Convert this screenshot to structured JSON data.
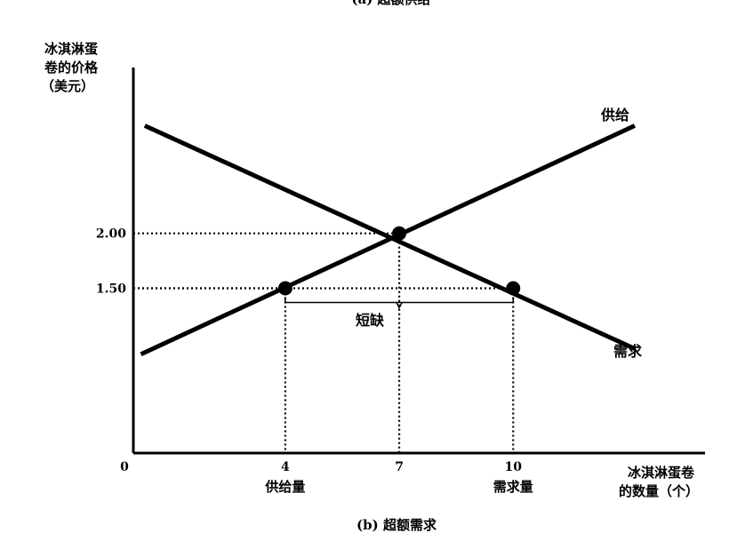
{
  "header": {
    "top_caption": "(a) 超额供给"
  },
  "footer": {
    "bottom_caption": "(b) 超额需求"
  },
  "chart_data": {
    "type": "line",
    "ylabel_lines": [
      "冰淇淋蛋",
      "卷的价格",
      "（美元）"
    ],
    "xlabel_lines": [
      "冰淇淋蛋卷",
      "的数量（个）"
    ],
    "origin_label": "0",
    "xlim": [
      0,
      15.05
    ],
    "ylim": [
      0,
      3.51
    ],
    "series": [
      {
        "name": "供给",
        "x": [
          0.2,
          13.2
        ],
        "y": [
          0.9,
          2.98
        ]
      },
      {
        "name": "需求",
        "x": [
          0.3,
          13.2
        ],
        "y": [
          2.98,
          0.95
        ]
      }
    ],
    "points": [
      {
        "x": 4,
        "y": 1.5
      },
      {
        "x": 7,
        "y": 2.0
      },
      {
        "x": 10,
        "y": 1.5
      }
    ],
    "guides": [
      {
        "x": 4,
        "y": 1.5
      },
      {
        "x": 7,
        "y": 2.0
      },
      {
        "x": 10,
        "y": 1.5
      }
    ],
    "y_ticks": [
      {
        "value": 2.0,
        "label": "2.00"
      },
      {
        "value": 1.5,
        "label": "1.50"
      }
    ],
    "x_ticks": [
      {
        "value": 4,
        "label": "4",
        "sublabel": "供给量"
      },
      {
        "value": 7,
        "label": "7",
        "sublabel": ""
      },
      {
        "value": 10,
        "label": "10",
        "sublabel": "需求量"
      }
    ],
    "shortage": {
      "label": "短缺",
      "x_from": 4,
      "x_to": 10,
      "y": 1.5
    },
    "colors": {
      "line": "#000000",
      "background": "#ffffff"
    },
    "grid": false,
    "legend": "none"
  }
}
